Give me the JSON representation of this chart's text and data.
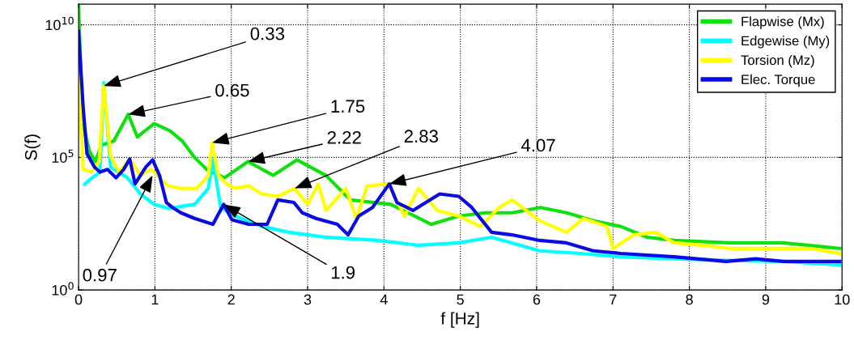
{
  "chart_data": {
    "type": "line",
    "xlabel": "f [Hz]",
    "ylabel": "S(f)",
    "log": "y",
    "grid": true,
    "legend": "top right",
    "marker": "none",
    "line_style": "solid",
    "xlim": [
      0,
      10
    ],
    "xticks": [
      0,
      1,
      2,
      3,
      4,
      5,
      6,
      7,
      8,
      9,
      10
    ],
    "ylim": [
      1,
      60000000000.0
    ],
    "yticks": [
      {
        "value": 1,
        "label": "10$^{0}$"
      },
      {
        "value": 100000,
        "label": "10$^{5}$"
      },
      {
        "value": 10000000000,
        "label": "10$^{10}$"
      }
    ],
    "series": [
      {
        "name": "Flapwise (Mx)",
        "color": "#10e010",
        "x": [
          0,
          0.05,
          0.14,
          0.22,
          0.3,
          0.46,
          0.65,
          0.77,
          0.99,
          1.2,
          1.36,
          1.52,
          1.68,
          1.91,
          2.22,
          2.55,
          2.86,
          3.24,
          3.56,
          4.09,
          4.62,
          4.98,
          5.33,
          5.68,
          6.05,
          6.39,
          6.74,
          7.1,
          7.45,
          7.81,
          8.52,
          9.23,
          9.97
        ],
        "values": [
          50000000000.0,
          2400000.0,
          180000.0,
          70000.0,
          290000.0,
          410000.0,
          4200000.0,
          590000.0,
          1900000.0,
          1000000.0,
          410000.0,
          100000.0,
          35000.0,
          17000.0,
          70000.0,
          21000.0,
          81000.0,
          21000.0,
          2500.0,
          1700.0,
          300,
          620,
          820,
          820,
          1300.0,
          820,
          410,
          250,
          98,
          74,
          60,
          60,
          37
        ]
      },
      {
        "name": "Edgewise (My)",
        "color": "#00ffff",
        "x": [
          0.08,
          0.14,
          0.28,
          0.33,
          0.42,
          0.64,
          0.81,
          0.99,
          1.17,
          1.52,
          1.7,
          1.76,
          1.86,
          2.05,
          2.4,
          2.76,
          3.24,
          3.92,
          4.45,
          4.98,
          5.41,
          6.04,
          6.57,
          7.1,
          7.8,
          8.52,
          9.23,
          9.97
        ],
        "values": [
          9800.0,
          14000.0,
          28000.0,
          66000000.0,
          43000.0,
          17000.0,
          4200.0,
          1700.0,
          1200.0,
          1700.0,
          6800.0,
          87000.0,
          1300.0,
          620,
          250,
          150,
          98,
          74,
          49,
          60,
          98,
          30,
          24,
          18,
          15,
          13,
          12,
          8.9
        ]
      },
      {
        "name": "Torsion (Mz)",
        "color": "#ffff00",
        "x": [
          0,
          0.06,
          0.17,
          0.27,
          0.33,
          0.42,
          0.53,
          0.67,
          0.81,
          0.95,
          1.06,
          1.17,
          1.34,
          1.55,
          1.7,
          1.75,
          1.83,
          1.94,
          2.05,
          2.23,
          2.4,
          2.61,
          2.83,
          3.0,
          3.14,
          3.24,
          3.5,
          3.64,
          3.78,
          4.06,
          4.27,
          4.45,
          4.7,
          4.98,
          5.26,
          5.51,
          5.68,
          6.04,
          6.39,
          6.61,
          6.92,
          7.0,
          7.27,
          7.56,
          7.8,
          8.17,
          8.52,
          8.87,
          9.23,
          9.58,
          9.97
        ],
        "values": [
          120000000.0,
          35000.0,
          28000.0,
          70000.0,
          50000000.0,
          110000.0,
          28000.0,
          87000.0,
          21000.0,
          35000.0,
          17000.0,
          8500.0,
          6800.0,
          6800.0,
          21000.0,
          360000.0,
          21000.0,
          10000.0,
          6800.0,
          8500.0,
          4200.0,
          3400.0,
          6800.0,
          1700.0,
          10000.0,
          1000.0,
          6800.0,
          500,
          8500.0,
          10000.0,
          620,
          6800.0,
          1000.0,
          620,
          250,
          1300.0,
          2500.0,
          410,
          150,
          500,
          250,
          37,
          120,
          150,
          60,
          49,
          37,
          37,
          37,
          37,
          24
        ]
      },
      {
        "name": "Elec. Torque",
        "color": "#0a0ae6",
        "x": [
          0,
          0.06,
          0.11,
          0.21,
          0.28,
          0.38,
          0.49,
          0.59,
          0.67,
          0.74,
          0.88,
          0.97,
          1.06,
          1.15,
          1.23,
          1.34,
          1.52,
          1.76,
          1.9,
          2.01,
          2.23,
          2.47,
          2.61,
          2.82,
          2.93,
          3.11,
          3.39,
          3.53,
          3.67,
          3.85,
          4.07,
          4.17,
          4.38,
          4.73,
          4.98,
          5.15,
          5.41,
          5.68,
          6.04,
          6.39,
          6.74,
          7.1,
          7.8,
          8.48,
          8.87,
          9.23,
          9.97
        ],
        "values": [
          5600000000.0,
          7900000.0,
          140000.0,
          43000.0,
          28000.0,
          35000.0,
          17000.0,
          35000.0,
          87000.0,
          10000.0,
          43000.0,
          81000.0,
          21000.0,
          2000.0,
          1300.0,
          820,
          500,
          300,
          1700.0,
          440,
          300,
          300,
          2500.0,
          2000.0,
          820,
          500,
          300,
          120,
          620,
          1300.0,
          10000.0,
          2000.0,
          1000.0,
          4200.0,
          3400.0,
          1300.0,
          150,
          120,
          74,
          60,
          30,
          24,
          18,
          12,
          15,
          12,
          12
        ]
      }
    ],
    "annotations": [
      {
        "text": "0.33",
        "x": 0.33,
        "y": 50000000.0
      },
      {
        "text": "0.65",
        "x": 0.65,
        "y": 4200000.0
      },
      {
        "text": "1.75",
        "x": 1.75,
        "y": 360000.0
      },
      {
        "text": "2.22",
        "x": 2.22,
        "y": 70000.0
      },
      {
        "text": "2.83",
        "x": 2.83,
        "y": 6800.0
      },
      {
        "text": "4.07",
        "x": 4.07,
        "y": 10000.0
      },
      {
        "text": "0.97",
        "x": 0.97,
        "y": 21000.0
      },
      {
        "text": "1.9",
        "x": 1.9,
        "y": 1700.0
      }
    ]
  }
}
